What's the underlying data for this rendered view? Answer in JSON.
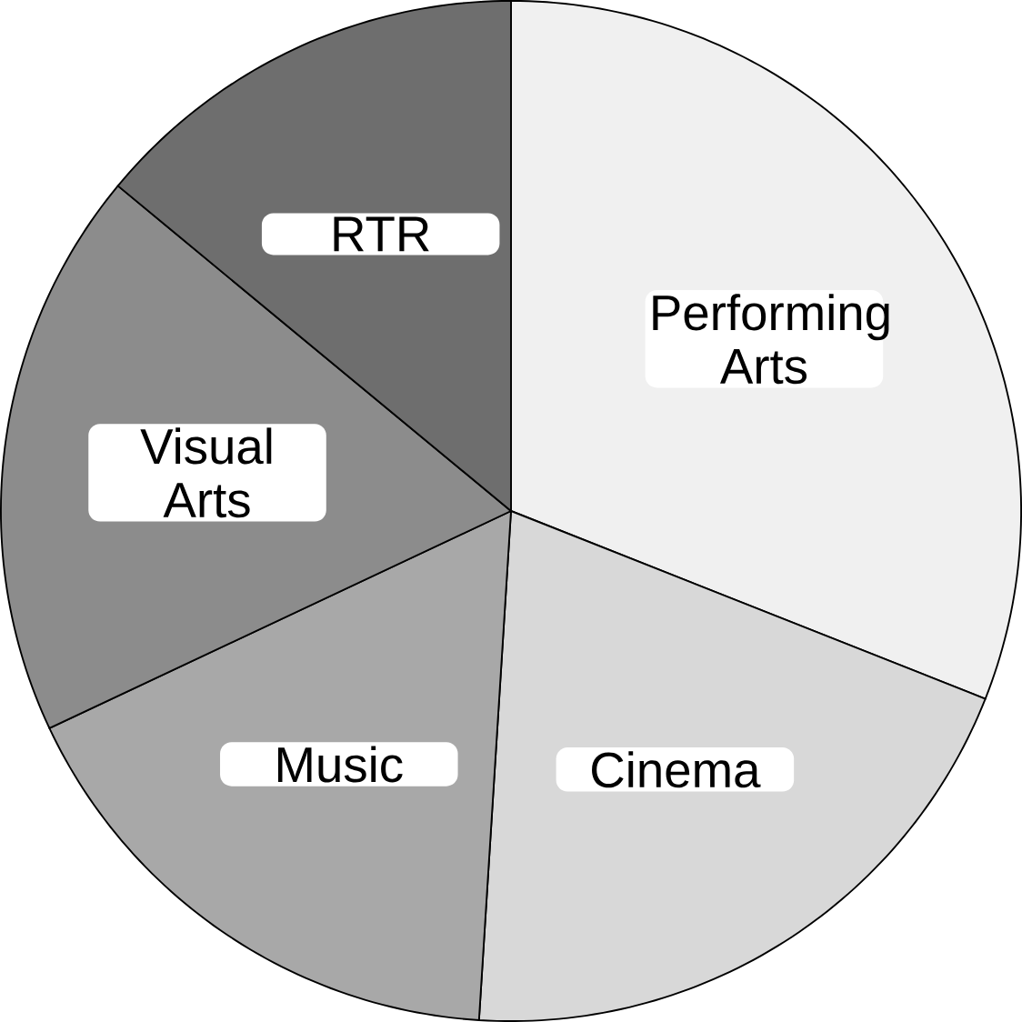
{
  "chart_data": {
    "type": "pie",
    "categories": [
      "Performing Arts",
      "Cinema",
      "Music",
      "Visual Arts",
      "RTR"
    ],
    "values": [
      31,
      20,
      17,
      18,
      14
    ],
    "colors": [
      "#f0f0f0",
      "#d8d8d8",
      "#a8a8a8",
      "#8c8c8c",
      "#6e6e6e"
    ]
  }
}
